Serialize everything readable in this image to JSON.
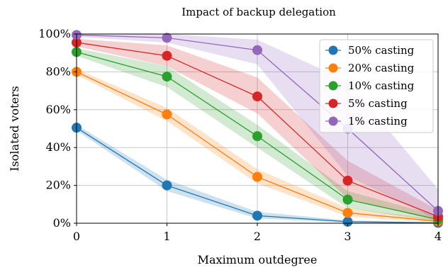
{
  "chart_data": {
    "type": "line",
    "title": "Impact of backup delegation",
    "xlabel": "Maximum outdegree",
    "ylabel": "Isolated voters",
    "x": [
      0,
      1,
      2,
      3,
      4
    ],
    "x_ticks": [
      "0",
      "1",
      "2",
      "3",
      "4"
    ],
    "xlim": [
      0,
      4
    ],
    "ylim": [
      0,
      100
    ],
    "y_ticks": [
      0,
      20,
      40,
      60,
      80,
      100
    ],
    "y_tick_labels": [
      "0%",
      "20%",
      "40%",
      "60%",
      "80%",
      "100%"
    ],
    "grid": true,
    "legend_position": "top-right",
    "series": [
      {
        "name": "50% casting",
        "color": "#1f77b4",
        "values": [
          50.5,
          20,
          4,
          0.8,
          0.2
        ],
        "lower": [
          49,
          17,
          2.5,
          0.3,
          0
        ],
        "upper": [
          52,
          23,
          6,
          1.5,
          0.6
        ]
      },
      {
        "name": "20% casting",
        "color": "#ff7f0e",
        "values": [
          80,
          57.5,
          24.5,
          5.5,
          1
        ],
        "lower": [
          78.5,
          54,
          21,
          3.5,
          0.3
        ],
        "upper": [
          81.5,
          61,
          28.5,
          8,
          2
        ]
      },
      {
        "name": "10% casting",
        "color": "#2ca02c",
        "values": [
          90.5,
          77.5,
          46,
          12.5,
          2
        ],
        "lower": [
          88.5,
          72,
          40,
          8,
          0.8
        ],
        "upper": [
          92.5,
          83,
          52,
          17,
          4
        ]
      },
      {
        "name": "5% casting",
        "color": "#d62728",
        "values": [
          95.5,
          88.5,
          67,
          22.5,
          3.5
        ],
        "lower": [
          93.5,
          83,
          58,
          13,
          1.2
        ],
        "upper": [
          97.5,
          94,
          77,
          33,
          7
        ]
      },
      {
        "name": "1% casting",
        "color": "#9467bd",
        "values": [
          99.5,
          98,
          91.5,
          50,
          6.5
        ],
        "lower": [
          98.5,
          95.5,
          84,
          25,
          1.5
        ],
        "upper": [
          100,
          100,
          97,
          75,
          18
        ]
      }
    ]
  }
}
